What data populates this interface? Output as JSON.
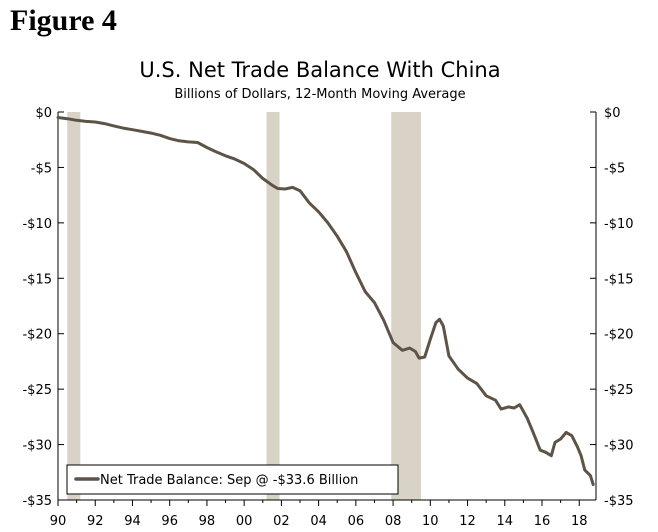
{
  "figure_label": "Figure 4",
  "chart_data": {
    "type": "line",
    "title": "U.S. Net Trade Balance With China",
    "subtitle": "Billions of Dollars, 12-Month Moving Average",
    "xlabel": "",
    "ylabel": "",
    "xlim": [
      1990,
      2018.9
    ],
    "ylim": [
      -35,
      0
    ],
    "x_ticks": [
      1990,
      1992,
      1994,
      1996,
      1998,
      2000,
      2002,
      2004,
      2006,
      2008,
      2010,
      2012,
      2014,
      2016,
      2018
    ],
    "x_tick_labels": [
      "90",
      "92",
      "94",
      "96",
      "98",
      "00",
      "02",
      "04",
      "06",
      "08",
      "10",
      "12",
      "14",
      "16",
      "18"
    ],
    "y_ticks": [
      0,
      -5,
      -10,
      -15,
      -20,
      -25,
      -30,
      -35
    ],
    "y_tick_labels": [
      "$0",
      "-$5",
      "-$10",
      "-$15",
      "-$20",
      "-$25",
      "-$30",
      "-$35"
    ],
    "recessions": [
      [
        1990.5,
        1991.2
      ],
      [
        2001.2,
        2001.9
      ],
      [
        2007.9,
        2009.5
      ]
    ],
    "legend": {
      "label": "Net Trade Balance: Sep @ -$33.6 Billion",
      "position": "bottom-left"
    },
    "series": [
      {
        "name": "Net Trade Balance",
        "color": "#5e5347",
        "points": [
          [
            1990.0,
            -0.5
          ],
          [
            1990.5,
            -0.6
          ],
          [
            1991.0,
            -0.75
          ],
          [
            1991.5,
            -0.85
          ],
          [
            1992.0,
            -0.9
          ],
          [
            1992.5,
            -1.05
          ],
          [
            1993.0,
            -1.25
          ],
          [
            1993.5,
            -1.45
          ],
          [
            1994.0,
            -1.6
          ],
          [
            1994.5,
            -1.75
          ],
          [
            1995.0,
            -1.9
          ],
          [
            1995.5,
            -2.1
          ],
          [
            1996.0,
            -2.4
          ],
          [
            1996.5,
            -2.6
          ],
          [
            1997.0,
            -2.7
          ],
          [
            1997.5,
            -2.75
          ],
          [
            1998.0,
            -3.2
          ],
          [
            1998.5,
            -3.6
          ],
          [
            1999.0,
            -3.95
          ],
          [
            1999.5,
            -4.25
          ],
          [
            2000.0,
            -4.65
          ],
          [
            2000.5,
            -5.2
          ],
          [
            2001.0,
            -6.0
          ],
          [
            2001.5,
            -6.6
          ],
          [
            2001.8,
            -6.9
          ],
          [
            2002.2,
            -6.95
          ],
          [
            2002.6,
            -6.8
          ],
          [
            2003.0,
            -7.1
          ],
          [
            2003.5,
            -8.2
          ],
          [
            2004.0,
            -9.0
          ],
          [
            2004.5,
            -10.0
          ],
          [
            2005.0,
            -11.2
          ],
          [
            2005.5,
            -12.6
          ],
          [
            2006.0,
            -14.5
          ],
          [
            2006.5,
            -16.2
          ],
          [
            2007.0,
            -17.2
          ],
          [
            2007.5,
            -18.8
          ],
          [
            2008.0,
            -20.8
          ],
          [
            2008.5,
            -21.5
          ],
          [
            2008.9,
            -21.3
          ],
          [
            2009.2,
            -21.6
          ],
          [
            2009.4,
            -22.2
          ],
          [
            2009.7,
            -22.1
          ],
          [
            2010.0,
            -20.5
          ],
          [
            2010.3,
            -19.0
          ],
          [
            2010.5,
            -18.7
          ],
          [
            2010.7,
            -19.3
          ],
          [
            2011.0,
            -22.0
          ],
          [
            2011.5,
            -23.2
          ],
          [
            2012.0,
            -24.0
          ],
          [
            2012.5,
            -24.5
          ],
          [
            2013.0,
            -25.6
          ],
          [
            2013.5,
            -26.0
          ],
          [
            2013.8,
            -26.8
          ],
          [
            2014.2,
            -26.6
          ],
          [
            2014.5,
            -26.7
          ],
          [
            2014.8,
            -26.4
          ],
          [
            2015.2,
            -27.6
          ],
          [
            2015.5,
            -28.8
          ],
          [
            2015.9,
            -30.5
          ],
          [
            2016.2,
            -30.7
          ],
          [
            2016.5,
            -31.0
          ],
          [
            2016.7,
            -29.8
          ],
          [
            2017.0,
            -29.5
          ],
          [
            2017.3,
            -28.9
          ],
          [
            2017.6,
            -29.2
          ],
          [
            2017.9,
            -30.2
          ],
          [
            2018.1,
            -31.0
          ],
          [
            2018.3,
            -32.3
          ],
          [
            2018.6,
            -32.8
          ],
          [
            2018.75,
            -33.6
          ]
        ]
      }
    ],
    "colors": {
      "recession": "#d8d3c6",
      "line": "#5e5347",
      "axis": "#000000"
    }
  }
}
